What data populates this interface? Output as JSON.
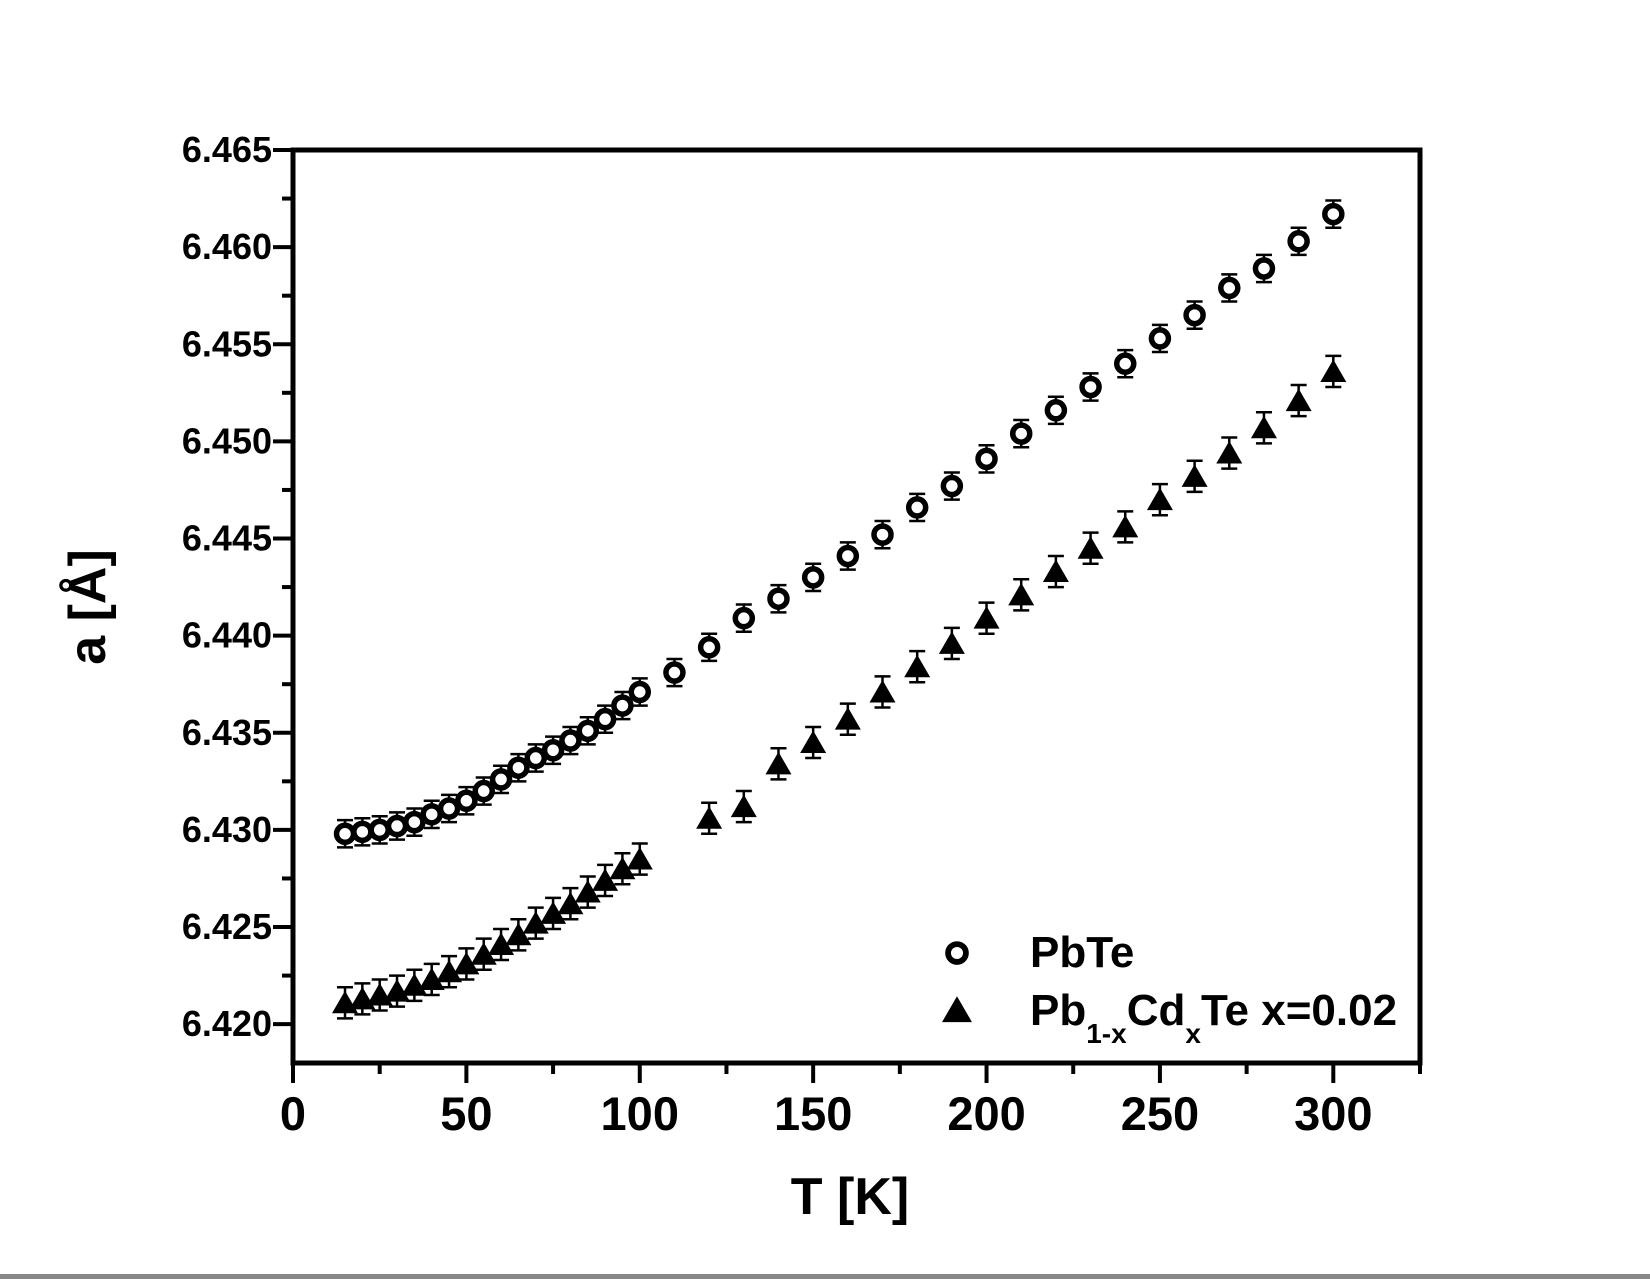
{
  "figure": {
    "background": "#ffffff",
    "foreground": "#000000"
  },
  "chart_data": {
    "type": "scatter",
    "title": "",
    "xlabel": "T [K]",
    "ylabel": "a [Å]",
    "xlim": [
      0,
      325
    ],
    "ylim": [
      6.418,
      6.465
    ],
    "grid": false,
    "tick_style": "outside",
    "x_major_ticks": [
      0,
      50,
      100,
      150,
      200,
      250,
      300
    ],
    "x_minor_ticks": [
      25,
      75,
      125,
      175,
      225,
      275,
      325
    ],
    "x_tick_labels": [
      "0",
      "50",
      "100",
      "150",
      "200",
      "250",
      "300"
    ],
    "y_major_ticks": [
      6.42,
      6.425,
      6.43,
      6.435,
      6.44,
      6.445,
      6.45,
      6.455,
      6.46,
      6.465
    ],
    "y_minor_ticks": [
      6.4225,
      6.4275,
      6.4325,
      6.4375,
      6.4425,
      6.4475,
      6.4525,
      6.4575,
      6.4625
    ],
    "y_tick_labels": [
      "6.420",
      "6.425",
      "6.430",
      "6.435",
      "6.440",
      "6.445",
      "6.450",
      "6.455",
      "6.460",
      "6.465"
    ],
    "legend": {
      "position": "inside-bottom-right",
      "items": [
        {
          "label": "PbTe",
          "marker": "open-circle",
          "parts": [
            {
              "text": "PbTe",
              "sub": false
            }
          ]
        },
        {
          "label": "Pb1-xCdxTe x=0.02",
          "marker": "filled-triangle",
          "parts": [
            {
              "text": "Pb",
              "sub": false
            },
            {
              "text": "1-x",
              "sub": true
            },
            {
              "text": "Cd",
              "sub": false
            },
            {
              "text": "x",
              "sub": true
            },
            {
              "text": "Te x=0.02",
              "sub": false
            }
          ]
        }
      ]
    },
    "series": [
      {
        "name": "PbTe",
        "marker": "open-circle",
        "color": "#000000",
        "y_error": 0.0007,
        "points": [
          [
            15,
            6.4298
          ],
          [
            20,
            6.4299
          ],
          [
            25,
            6.43
          ],
          [
            30,
            6.4302
          ],
          [
            35,
            6.4304
          ],
          [
            40,
            6.4308
          ],
          [
            45,
            6.4311
          ],
          [
            50,
            6.4315
          ],
          [
            55,
            6.432
          ],
          [
            60,
            6.4326
          ],
          [
            65,
            6.4332
          ],
          [
            70,
            6.4337
          ],
          [
            75,
            6.4341
          ],
          [
            80,
            6.4346
          ],
          [
            85,
            6.4351
          ],
          [
            90,
            6.4357
          ],
          [
            95,
            6.4364
          ],
          [
            100,
            6.4371
          ],
          [
            110,
            6.4381
          ],
          [
            120,
            6.4394
          ],
          [
            130,
            6.4409
          ],
          [
            140,
            6.4419
          ],
          [
            150,
            6.443
          ],
          [
            160,
            6.4441
          ],
          [
            170,
            6.4452
          ],
          [
            180,
            6.4466
          ],
          [
            190,
            6.4477
          ],
          [
            200,
            6.4491
          ],
          [
            210,
            6.4504
          ],
          [
            220,
            6.4516
          ],
          [
            230,
            6.4528
          ],
          [
            240,
            6.454
          ],
          [
            250,
            6.4553
          ],
          [
            260,
            6.4565
          ],
          [
            270,
            6.4579
          ],
          [
            280,
            6.4589
          ],
          [
            290,
            6.4603
          ],
          [
            300,
            6.4617
          ]
        ]
      },
      {
        "name": "Pb1-xCdxTe x=0.02",
        "marker": "filled-triangle",
        "color": "#000000",
        "y_error": 0.0008,
        "points": [
          [
            15,
            6.4211
          ],
          [
            20,
            6.4213
          ],
          [
            25,
            6.4215
          ],
          [
            30,
            6.4217
          ],
          [
            35,
            6.422
          ],
          [
            40,
            6.4223
          ],
          [
            45,
            6.4227
          ],
          [
            50,
            6.4231
          ],
          [
            55,
            6.4236
          ],
          [
            60,
            6.4241
          ],
          [
            65,
            6.4246
          ],
          [
            70,
            6.4252
          ],
          [
            75,
            6.4257
          ],
          [
            80,
            6.4262
          ],
          [
            85,
            6.4268
          ],
          [
            90,
            6.4274
          ],
          [
            95,
            6.428
          ],
          [
            100,
            6.4285
          ],
          [
            120,
            6.4306
          ],
          [
            130,
            6.4312
          ],
          [
            140,
            6.4334
          ],
          [
            150,
            6.4345
          ],
          [
            160,
            6.4357
          ],
          [
            170,
            6.4371
          ],
          [
            180,
            6.4384
          ],
          [
            190,
            6.4396
          ],
          [
            200,
            6.4409
          ],
          [
            210,
            6.4421
          ],
          [
            220,
            6.4433
          ],
          [
            230,
            6.4445
          ],
          [
            240,
            6.4456
          ],
          [
            250,
            6.447
          ],
          [
            260,
            6.4482
          ],
          [
            270,
            6.4494
          ],
          [
            280,
            6.4507
          ],
          [
            290,
            6.4521
          ],
          [
            300,
            6.4536
          ]
        ]
      }
    ]
  }
}
